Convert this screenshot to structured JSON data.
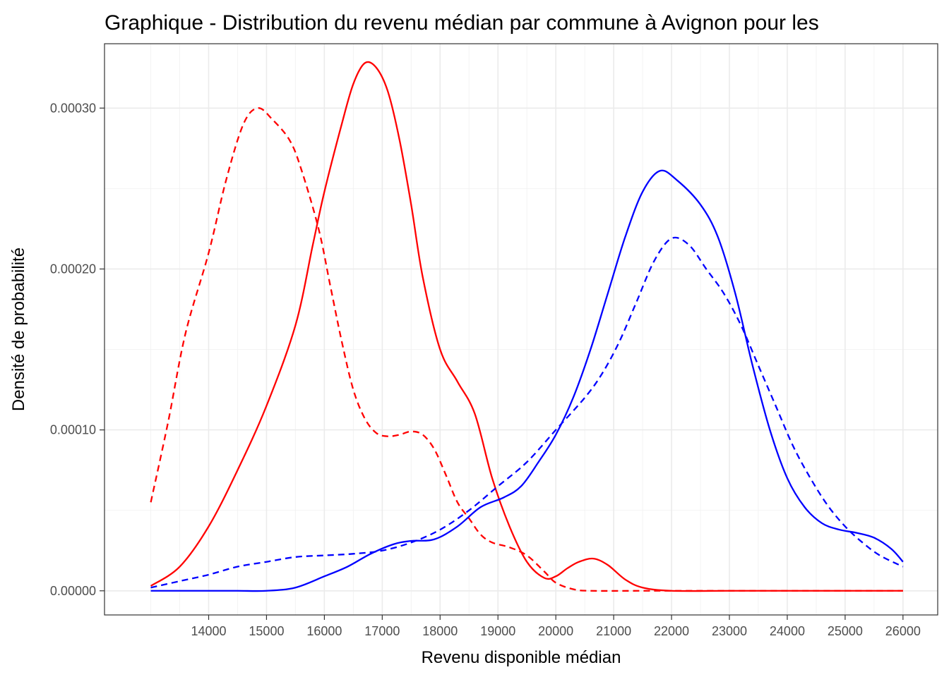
{
  "chart_data": {
    "type": "line",
    "title": "Graphique - Distribution du revenu médian par commune à Avignon pour les",
    "xlabel": "Revenu disponible médian",
    "ylabel": "Densité de probabilité",
    "xlim": [
      12200,
      26600
    ],
    "ylim": [
      -1.5e-05,
      0.00034
    ],
    "x_ticks": [
      14000,
      15000,
      16000,
      17000,
      18000,
      19000,
      20000,
      21000,
      22000,
      23000,
      24000,
      25000,
      26000
    ],
    "x_tick_labels": [
      "14000",
      "15000",
      "16000",
      "17000",
      "18000",
      "19000",
      "20000",
      "21000",
      "22000",
      "23000",
      "24000",
      "25000",
      "26000"
    ],
    "x_minor_ticks": [
      13000,
      13500,
      14500,
      15500,
      16500,
      17500,
      18500,
      19500,
      20500,
      21500,
      22500,
      23500,
      24500,
      25500
    ],
    "y_ticks": [
      0,
      0.0001,
      0.0002,
      0.0003
    ],
    "y_tick_labels": [
      "0.00000",
      "0.00010",
      "0.00020",
      "0.00030"
    ],
    "y_minor_ticks": [
      5e-05,
      0.00015,
      0.00025
    ],
    "grid": true,
    "legend": "none",
    "series": [
      {
        "color": "#ff0000",
        "linestyle": "solid",
        "points": [
          [
            13000,
            3e-06
          ],
          [
            13500,
            1.5e-05
          ],
          [
            14000,
            4e-05
          ],
          [
            14500,
            7.5e-05
          ],
          [
            15000,
            0.000115
          ],
          [
            15500,
            0.000165
          ],
          [
            15800,
            0.000215
          ],
          [
            16000,
            0.000248
          ],
          [
            16300,
            0.00029
          ],
          [
            16500,
            0.000315
          ],
          [
            16700,
            0.000328
          ],
          [
            16900,
            0.000325
          ],
          [
            17100,
            0.00031
          ],
          [
            17300,
            0.00028
          ],
          [
            17500,
            0.00024
          ],
          [
            17700,
            0.000195
          ],
          [
            18000,
            0.00015
          ],
          [
            18300,
            0.00013
          ],
          [
            18600,
            0.00011
          ],
          [
            18900,
            7e-05
          ],
          [
            19200,
            4e-05
          ],
          [
            19500,
            1.8e-05
          ],
          [
            19800,
            8e-06
          ],
          [
            20000,
            9e-06
          ],
          [
            20200,
            1.4e-05
          ],
          [
            20400,
            1.8e-05
          ],
          [
            20650,
            2e-05
          ],
          [
            20900,
            1.6e-05
          ],
          [
            21200,
            7e-06
          ],
          [
            21500,
            2e-06
          ],
          [
            22000,
            0
          ],
          [
            23000,
            0
          ],
          [
            24000,
            0
          ],
          [
            25000,
            0
          ],
          [
            26000,
            0
          ]
        ]
      },
      {
        "color": "#ff0000",
        "linestyle": "dashed",
        "points": [
          [
            13000,
            5.5e-05
          ],
          [
            13300,
            0.000105
          ],
          [
            13600,
            0.00016
          ],
          [
            14000,
            0.00021
          ],
          [
            14300,
            0.000255
          ],
          [
            14600,
            0.00029
          ],
          [
            14850,
            0.0003
          ],
          [
            15100,
            0.000293
          ],
          [
            15400,
            0.00028
          ],
          [
            15600,
            0.000262
          ],
          [
            15900,
            0.000225
          ],
          [
            16100,
            0.00019
          ],
          [
            16300,
            0.000155
          ],
          [
            16500,
            0.000125
          ],
          [
            16700,
            0.000107
          ],
          [
            16900,
            9.8e-05
          ],
          [
            17100,
            9.6e-05
          ],
          [
            17300,
            9.7e-05
          ],
          [
            17500,
            9.9e-05
          ],
          [
            17700,
            9.7e-05
          ],
          [
            17900,
            8.8e-05
          ],
          [
            18100,
            7.2e-05
          ],
          [
            18300,
            5.5e-05
          ],
          [
            18500,
            4.5e-05
          ],
          [
            18700,
            3.5e-05
          ],
          [
            18900,
            3e-05
          ],
          [
            19200,
            2.7e-05
          ],
          [
            19500,
            2.2e-05
          ],
          [
            19800,
            1.2e-05
          ],
          [
            20000,
            5e-06
          ],
          [
            20300,
            1e-06
          ],
          [
            20600,
            0
          ],
          [
            21500,
            0
          ],
          [
            22000,
            0
          ],
          [
            23000,
            0
          ],
          [
            24000,
            0
          ],
          [
            25000,
            0
          ],
          [
            26000,
            0
          ]
        ]
      },
      {
        "color": "#0000ff",
        "linestyle": "solid",
        "points": [
          [
            13000,
            0
          ],
          [
            14000,
            0
          ],
          [
            14500,
            0
          ],
          [
            15000,
            0
          ],
          [
            15500,
            2e-06
          ],
          [
            16000,
            9e-06
          ],
          [
            16400,
            1.5e-05
          ],
          [
            16800,
            2.3e-05
          ],
          [
            17200,
            2.9e-05
          ],
          [
            17500,
            3.1e-05
          ],
          [
            17900,
            3.2e-05
          ],
          [
            18300,
            4e-05
          ],
          [
            18700,
            5.2e-05
          ],
          [
            19100,
            5.8e-05
          ],
          [
            19400,
            6.5e-05
          ],
          [
            19700,
            8e-05
          ],
          [
            20000,
            9.7e-05
          ],
          [
            20300,
            0.00012
          ],
          [
            20600,
            0.00015
          ],
          [
            20900,
            0.000185
          ],
          [
            21200,
            0.00022
          ],
          [
            21500,
            0.000248
          ],
          [
            21800,
            0.000261
          ],
          [
            22100,
            0.000255
          ],
          [
            22500,
            0.00024
          ],
          [
            22800,
            0.00022
          ],
          [
            23100,
            0.000185
          ],
          [
            23400,
            0.00014
          ],
          [
            23700,
            0.0001
          ],
          [
            24000,
            7e-05
          ],
          [
            24300,
            5.2e-05
          ],
          [
            24600,
            4.2e-05
          ],
          [
            24900,
            3.8e-05
          ],
          [
            25200,
            3.6e-05
          ],
          [
            25500,
            3.3e-05
          ],
          [
            25800,
            2.6e-05
          ],
          [
            26000,
            1.8e-05
          ]
        ]
      },
      {
        "color": "#0000ff",
        "linestyle": "dashed",
        "points": [
          [
            13000,
            2e-06
          ],
          [
            13500,
            6e-06
          ],
          [
            14000,
            1e-05
          ],
          [
            14500,
            1.5e-05
          ],
          [
            15000,
            1.8e-05
          ],
          [
            15500,
            2.1e-05
          ],
          [
            16000,
            2.2e-05
          ],
          [
            16500,
            2.3e-05
          ],
          [
            17000,
            2.5e-05
          ],
          [
            17500,
            3e-05
          ],
          [
            18000,
            3.8e-05
          ],
          [
            18500,
            5e-05
          ],
          [
            19000,
            6.5e-05
          ],
          [
            19500,
            8e-05
          ],
          [
            20000,
            0.0001
          ],
          [
            20500,
            0.00012
          ],
          [
            20800,
            0.000135
          ],
          [
            21100,
            0.000155
          ],
          [
            21400,
            0.00018
          ],
          [
            21700,
            0.000205
          ],
          [
            22000,
            0.000219
          ],
          [
            22300,
            0.000215
          ],
          [
            22600,
            0.0002
          ],
          [
            22900,
            0.000185
          ],
          [
            23200,
            0.000165
          ],
          [
            23500,
            0.00014
          ],
          [
            23800,
            0.000115
          ],
          [
            24100,
            9e-05
          ],
          [
            24400,
            7e-05
          ],
          [
            24700,
            5.3e-05
          ],
          [
            25000,
            4e-05
          ],
          [
            25300,
            3e-05
          ],
          [
            25600,
            2.2e-05
          ],
          [
            26000,
            1.5e-05
          ]
        ]
      }
    ]
  }
}
